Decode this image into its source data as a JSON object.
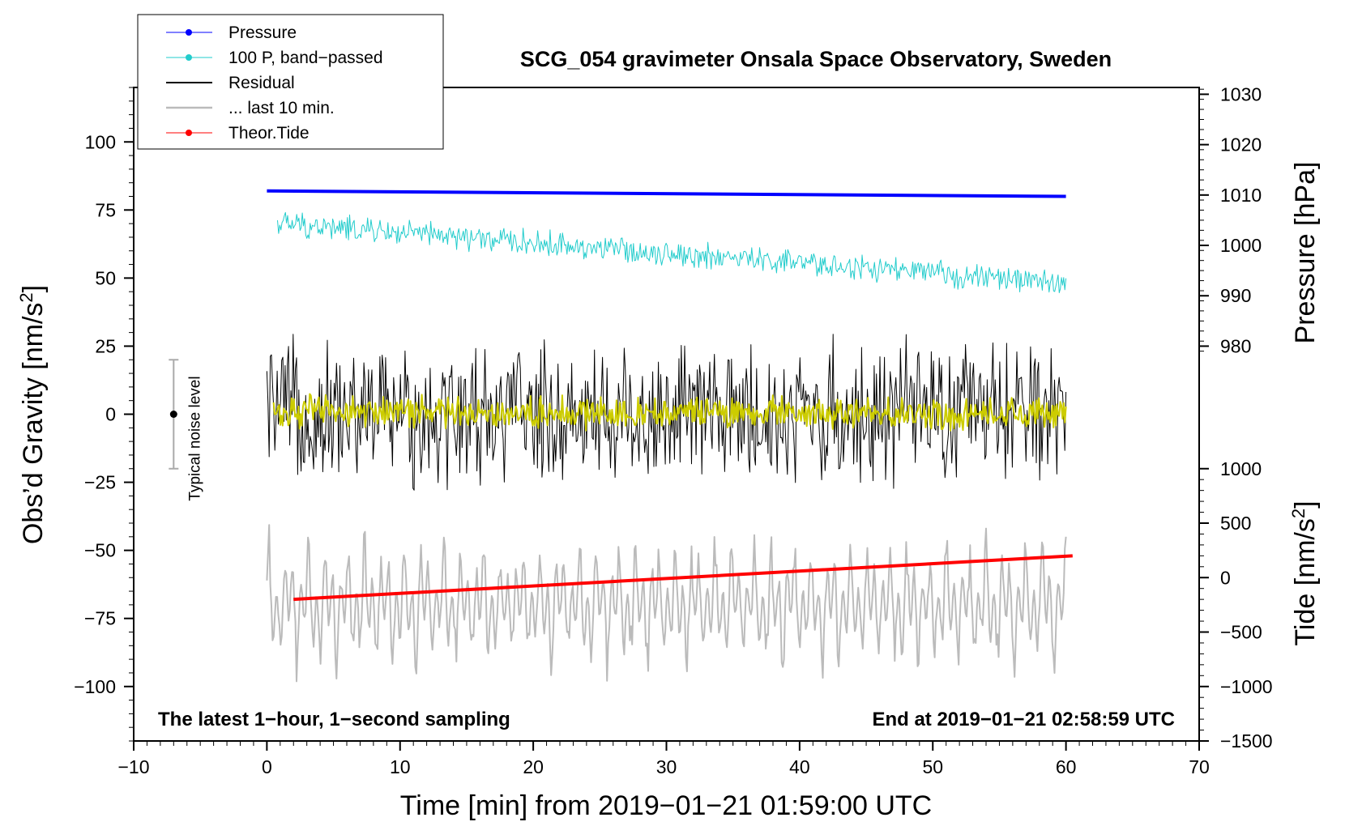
{
  "chart_data": {
    "type": "line",
    "title": "SCG_054 gravimeter Onsala Space Observatory, Sweden",
    "xlabel": "Time [min] from 2019−01−21 01:59:00 UTC",
    "ylabel_main": "Obs’d Gravity [nm/s",
    "ylabel_main_sup": "2",
    "ylabel_main_end": "]",
    "ylabel_pressure": "Pressure [hPa]",
    "ylabel_tide": "Tide [nm/s",
    "ylabel_tide_sup": "2",
    "ylabel_tide_end": "]",
    "xlim": [
      -10,
      70
    ],
    "ylim": [
      -120,
      120
    ],
    "x_ticks": [
      -10,
      0,
      10,
      20,
      30,
      40,
      50,
      60,
      70
    ],
    "x_tick_labels": [
      "−10",
      "0",
      "10",
      "20",
      "30",
      "40",
      "50",
      "60",
      "70"
    ],
    "y_ticks": [
      -100,
      -75,
      -50,
      -25,
      0,
      25,
      50,
      75,
      100
    ],
    "y_tick_labels": [
      "−100",
      "−75",
      "−50",
      "−25",
      "0",
      "25",
      "50",
      "75",
      "100"
    ],
    "pressure_axis": {
      "ticks": [
        980,
        990,
        1000,
        1010,
        1020,
        1030
      ],
      "tick_labels": [
        "980",
        "990",
        "1000",
        "1010",
        "1020",
        "1030"
      ],
      "main_at_980": 25,
      "main_per_hPa": 1.85
    },
    "tide_axis": {
      "ticks": [
        -1500,
        -1000,
        -500,
        0,
        500,
        1000
      ],
      "tick_labels": [
        "−1500",
        "−1000",
        "−500",
        "0",
        "500",
        "1000"
      ],
      "main_at_0": -60,
      "main_per_unit": 0.04
    },
    "notes": {
      "left": "The latest 1−hour, 1−second sampling",
      "right": "End at 2019−01−21 02:58:59 UTC"
    },
    "noise_indicator": {
      "label": "Typical noise level",
      "x": -7,
      "center": 0,
      "range": [
        -20,
        20
      ]
    },
    "legend": [
      {
        "label": "Pressure",
        "color": "#0000ff",
        "marker": true
      },
      {
        "label": "100 P, band−passed",
        "color": "#22cccc",
        "marker": true
      },
      {
        "label": "Residual",
        "color": "#000000",
        "marker": false
      },
      {
        "label": "... last 10 min.",
        "color": "#bbbbbb",
        "marker": false
      },
      {
        "label": "Theor.Tide",
        "color": "#ff0000",
        "marker": true
      }
    ],
    "series": [
      {
        "name": "Pressure",
        "color": "#0000ff",
        "kind": "line",
        "x": [
          0,
          60
        ],
        "y": [
          82,
          80
        ],
        "width": 4
      },
      {
        "name": "100 P, band−passed",
        "color": "#22cccc",
        "kind": "noise",
        "x_range": [
          0.8,
          60
        ],
        "y_start": 70,
        "y_end": 48,
        "amplitude": 4,
        "width": 1
      },
      {
        "name": "Residual",
        "color": "#000000",
        "kind": "noise",
        "x_range": [
          0,
          60
        ],
        "y_start": 0,
        "y_end": 0,
        "amplitude": 22,
        "width": 1
      },
      {
        "name": "... last 10 min.",
        "color": "#bbbbbb",
        "kind": "noise",
        "x_range": [
          0,
          60
        ],
        "y_start": -70,
        "y_end": -70,
        "amplitude": 20,
        "width": 2
      },
      {
        "name": "Band−passed residual",
        "color": "#cccc00",
        "kind": "noise",
        "x_range": [
          0.5,
          60
        ],
        "y_start": 1,
        "y_end": 0,
        "amplitude": 5,
        "width": 2
      },
      {
        "name": "Theor.Tide",
        "color": "#ff0000",
        "kind": "line",
        "x": [
          2,
          60.5
        ],
        "y": [
          -68,
          -52
        ],
        "width": 4
      }
    ]
  },
  "colors": {
    "axis": "#000000",
    "background": "#ffffff",
    "noise_bar": "#aaaaaa"
  }
}
